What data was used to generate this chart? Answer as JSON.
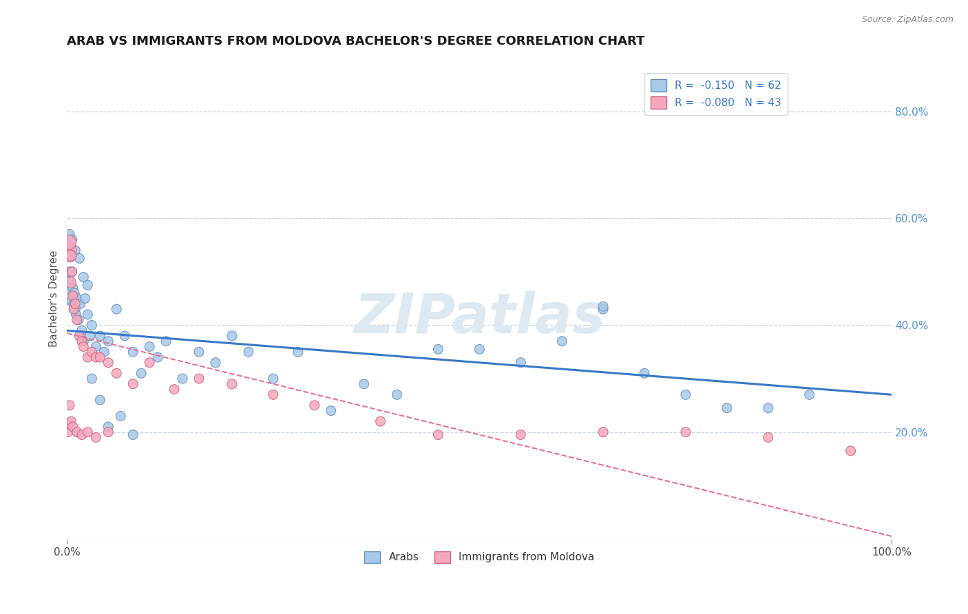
{
  "title": "ARAB VS IMMIGRANTS FROM MOLDOVA BACHELOR'S DEGREE CORRELATION CHART",
  "source": "Source: ZipAtlas.com",
  "ylabel": "Bachelor's Degree",
  "legend_top": [
    {
      "label": "R =  -0.150   N = 62",
      "color": "#a8c8e8"
    },
    {
      "label": "R =  -0.080   N = 43",
      "color": "#f4b8c8"
    }
  ],
  "legend_bottom": [
    "Arabs",
    "Immigrants from Moldova"
  ],
  "ytick_vals": [
    0.2,
    0.4,
    0.6,
    0.8
  ],
  "ytick_labels": [
    "20.0%",
    "40.0%",
    "60.0%",
    "80.0%"
  ],
  "blue_fill": "#a8c8e8",
  "blue_edge": "#6090c0",
  "pink_fill": "#f4a8bc",
  "pink_edge": "#d06080",
  "watermark": "ZIPatlas",
  "watermark_color": "#dde8f0",
  "blue_line_color": "#3878c8",
  "pink_line_color": "#e87090",
  "grid_color": "#c8d4e0",
  "blue_line_intercept": 0.39,
  "blue_line_slope": -0.12,
  "pink_line_intercept": 0.385,
  "pink_line_slope": -0.38,
  "xlim": [
    0.0,
    1.0
  ],
  "ylim": [
    0.0,
    0.9
  ],
  "arab_x": [
    0.002,
    0.003,
    0.004,
    0.005,
    0.006,
    0.007,
    0.008,
    0.009,
    0.01,
    0.011,
    0.012,
    0.014,
    0.016,
    0.018,
    0.02,
    0.022,
    0.025,
    0.028,
    0.03,
    0.035,
    0.04,
    0.045,
    0.05,
    0.06,
    0.07,
    0.08,
    0.09,
    0.1,
    0.11,
    0.12,
    0.14,
    0.16,
    0.18,
    0.2,
    0.22,
    0.25,
    0.28,
    0.32,
    0.36,
    0.4,
    0.45,
    0.5,
    0.55,
    0.6,
    0.65,
    0.7,
    0.75,
    0.8,
    0.85,
    0.9,
    0.003,
    0.006,
    0.01,
    0.015,
    0.02,
    0.025,
    0.03,
    0.04,
    0.05,
    0.065,
    0.08,
    0.65
  ],
  "arab_y": [
    0.485,
    0.5,
    0.465,
    0.445,
    0.5,
    0.47,
    0.44,
    0.46,
    0.43,
    0.42,
    0.45,
    0.41,
    0.44,
    0.39,
    0.37,
    0.45,
    0.42,
    0.38,
    0.4,
    0.36,
    0.38,
    0.35,
    0.37,
    0.43,
    0.38,
    0.35,
    0.31,
    0.36,
    0.34,
    0.37,
    0.3,
    0.35,
    0.33,
    0.38,
    0.35,
    0.3,
    0.35,
    0.24,
    0.29,
    0.27,
    0.355,
    0.355,
    0.33,
    0.37,
    0.43,
    0.31,
    0.27,
    0.245,
    0.245,
    0.27,
    0.57,
    0.56,
    0.54,
    0.525,
    0.49,
    0.475,
    0.3,
    0.26,
    0.21,
    0.23,
    0.195,
    0.435
  ],
  "arab_size": [
    100,
    100,
    100,
    100,
    100,
    100,
    100,
    100,
    100,
    100,
    100,
    100,
    100,
    100,
    100,
    100,
    100,
    100,
    100,
    100,
    100,
    100,
    100,
    100,
    100,
    100,
    100,
    100,
    100,
    100,
    100,
    100,
    100,
    100,
    100,
    100,
    100,
    100,
    100,
    100,
    100,
    100,
    100,
    100,
    100,
    100,
    100,
    100,
    100,
    100,
    100,
    100,
    100,
    100,
    100,
    100,
    100,
    100,
    100,
    100,
    100,
    100
  ],
  "mold_x": [
    0.001,
    0.002,
    0.003,
    0.004,
    0.005,
    0.006,
    0.007,
    0.008,
    0.01,
    0.012,
    0.015,
    0.018,
    0.02,
    0.025,
    0.03,
    0.035,
    0.04,
    0.05,
    0.06,
    0.08,
    0.1,
    0.13,
    0.16,
    0.2,
    0.25,
    0.3,
    0.38,
    0.45,
    0.55,
    0.65,
    0.75,
    0.85,
    0.95,
    0.001,
    0.002,
    0.003,
    0.005,
    0.007,
    0.012,
    0.018,
    0.025,
    0.035,
    0.05
  ],
  "mold_y": [
    0.54,
    0.555,
    0.53,
    0.48,
    0.53,
    0.5,
    0.455,
    0.43,
    0.44,
    0.41,
    0.38,
    0.37,
    0.36,
    0.34,
    0.35,
    0.34,
    0.34,
    0.33,
    0.31,
    0.29,
    0.33,
    0.28,
    0.3,
    0.29,
    0.27,
    0.25,
    0.22,
    0.195,
    0.195,
    0.2,
    0.2,
    0.19,
    0.165,
    0.2,
    0.215,
    0.25,
    0.22,
    0.21,
    0.2,
    0.195,
    0.2,
    0.19,
    0.2
  ],
  "mold_size": [
    320,
    240,
    180,
    140,
    120,
    100,
    100,
    100,
    100,
    100,
    100,
    100,
    100,
    100,
    100,
    100,
    100,
    100,
    100,
    100,
    100,
    100,
    100,
    100,
    100,
    100,
    100,
    100,
    100,
    100,
    100,
    100,
    100,
    100,
    100,
    100,
    100,
    100,
    100,
    100,
    100,
    100,
    100
  ]
}
